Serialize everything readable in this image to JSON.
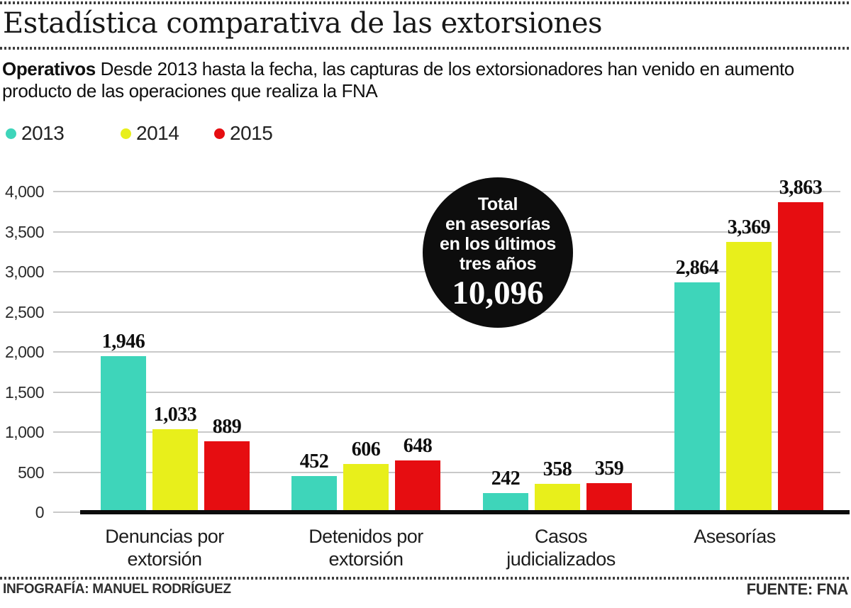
{
  "header": {
    "title": "Estadística comparativa de las extorsiones",
    "lead_label": "Operativos",
    "intro_line1": "Desde 2013 hasta la fecha, las capturas de los extorsionadores han venido en aumento",
    "intro_line2": "producto de las operaciones que realiza la FNA"
  },
  "legend": {
    "items": [
      {
        "label": "2013",
        "color": "#3ed5ba"
      },
      {
        "label": "2014",
        "color": "#e8ef1b"
      },
      {
        "label": "2015",
        "color": "#e60d11"
      }
    ]
  },
  "chart_data": {
    "type": "bar",
    "title": "Estadística comparativa de las extorsiones",
    "categories": [
      "Denuncias por extorsión",
      "Detenidos por extorsión",
      "Casos judicializados",
      "Asesorías"
    ],
    "series": [
      {
        "name": "2013",
        "color": "#3ed5ba",
        "values": [
          1946,
          452,
          242,
          2864
        ],
        "labels": [
          "1,946",
          "452",
          "242",
          "2,864"
        ]
      },
      {
        "name": "2014",
        "color": "#e8ef1b",
        "values": [
          1033,
          606,
          358,
          3369
        ],
        "labels": [
          "1,033",
          "606",
          "358",
          "3,369"
        ]
      },
      {
        "name": "2015",
        "color": "#e60d11",
        "values": [
          889,
          648,
          359,
          3863
        ],
        "labels": [
          "889",
          "648",
          "359",
          "3,863"
        ]
      }
    ],
    "ylim": [
      0,
      4000
    ],
    "ytick_step": 500,
    "yticks": [
      "0",
      "500",
      "1,000",
      "1,500",
      "2,000",
      "2,500",
      "3,000",
      "3,500",
      "4,000"
    ],
    "grid": true,
    "legend_position": "top-left"
  },
  "callout": {
    "lines": [
      "Total",
      "en asesorías",
      "en los últimos",
      "tres años"
    ],
    "value": "10,096",
    "bg_color": "#0d0d0d"
  },
  "footer": {
    "credit": "INFOGRAFÍA: MANUEL RODRÍGUEZ",
    "source": "FUENTE: FNA"
  }
}
